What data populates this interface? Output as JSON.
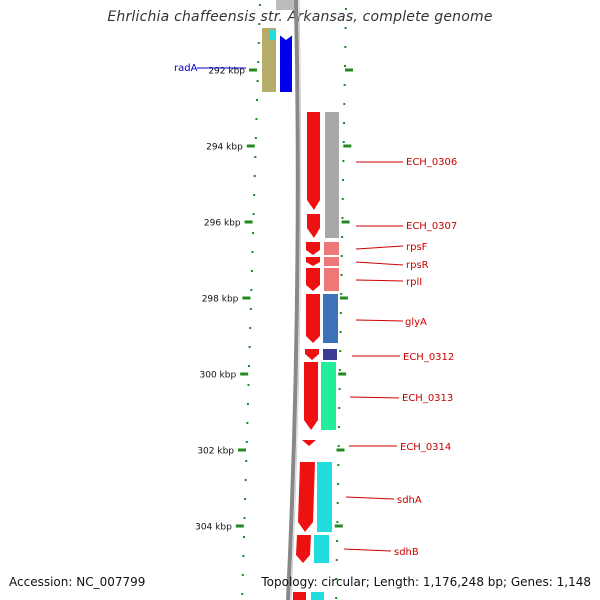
{
  "title": "Ehrlichia chaffeensis str. Arkansas, complete genome",
  "footer": {
    "accession": "Accession: NC_007799",
    "topology": "Topology: circular; Length: 1,176,248 bp; Genes: 1,148"
  },
  "colors": {
    "forward_cds": "#ee1111",
    "tick_green": "#228822",
    "label_red": "#cc0000",
    "label_blue": "#0000cc",
    "backbone": "#888888"
  },
  "ruler": [
    {
      "label": "292 kbp",
      "kbp": 292
    },
    {
      "label": "294 kbp",
      "kbp": 294
    },
    {
      "label": "296 kbp",
      "kbp": 296
    },
    {
      "label": "298 kbp",
      "kbp": 298
    },
    {
      "label": "300 kbp",
      "kbp": 300
    },
    {
      "label": "302 kbp",
      "kbp": 302
    },
    {
      "label": "304 kbp",
      "kbp": 304
    }
  ],
  "genes": [
    {
      "name": "radA",
      "label_color": "blue"
    },
    {
      "name": "ECH_0306",
      "label_color": "red"
    },
    {
      "name": "ECH_0307",
      "label_color": "red"
    },
    {
      "name": "rpsF",
      "label_color": "red"
    },
    {
      "name": "rpsR",
      "label_color": "red"
    },
    {
      "name": "rplI",
      "label_color": "red"
    },
    {
      "name": "glyA",
      "label_color": "red"
    },
    {
      "name": "ECH_0312",
      "label_color": "red"
    },
    {
      "name": "ECH_0313",
      "label_color": "red"
    },
    {
      "name": "ECH_0314",
      "label_color": "red"
    },
    {
      "name": "sdhA",
      "label_color": "red"
    },
    {
      "name": "sdhB",
      "label_color": "red"
    }
  ]
}
